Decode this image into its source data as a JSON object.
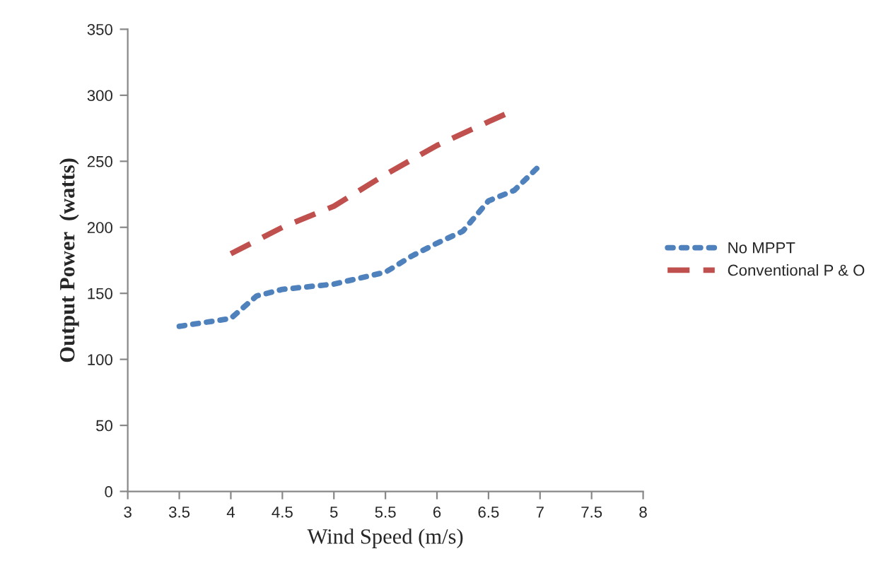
{
  "chart_data": {
    "type": "line",
    "xlabel": "Wind Speed (m/s)",
    "ylabel": "Output Power  (watts)",
    "series": [
      {
        "name": "No MPPT",
        "color": "#4f81bd",
        "line_style": "dotted",
        "x": [
          3.5,
          4,
          4.25,
          4.5,
          5,
          5.5,
          5.75,
          6,
          6.25,
          6.5,
          6.75,
          7
        ],
        "values": [
          125,
          131,
          148,
          153,
          157,
          166,
          178,
          188,
          197,
          220,
          228,
          247
        ]
      },
      {
        "name": "Conventional P & O",
        "color": "#c0504d",
        "line_style": "dashed",
        "x": [
          4,
          4.5,
          5,
          5.5,
          6,
          6.5,
          6.7
        ],
        "values": [
          180,
          200,
          216,
          240,
          262,
          280,
          287
        ]
      }
    ],
    "xlim": [
      3,
      8
    ],
    "xticks": [
      3,
      3.5,
      4,
      4.5,
      5,
      5.5,
      6,
      6.5,
      7,
      7.5,
      8
    ],
    "ylim": [
      0,
      350
    ],
    "yticks": [
      0,
      50,
      100,
      150,
      200,
      250,
      300,
      350
    ],
    "grid": false,
    "legend": "right",
    "marker": "none"
  }
}
